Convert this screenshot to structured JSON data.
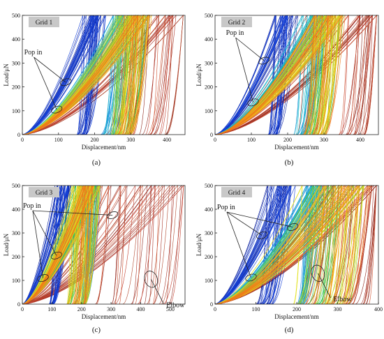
{
  "chart_data": [
    {
      "type": "line",
      "panel_label": "(a)",
      "grid_label": "Grid 1",
      "xlabel": "Displacement/nm",
      "ylabel": "Load/μN",
      "xlim": [
        0,
        450
      ],
      "ylim": [
        0,
        500
      ],
      "xticks": [
        0,
        100,
        200,
        300,
        400
      ],
      "yticks": [
        0,
        100,
        200,
        300,
        400,
        500
      ],
      "annotations": [
        {
          "label": "Pop in",
          "targets": [
            [
              95,
              105
            ],
            [
              120,
              220
            ]
          ]
        }
      ]
    },
    {
      "type": "line",
      "panel_label": "(b)",
      "grid_label": "Grid 2",
      "xlabel": "Displacement/nm",
      "ylabel": "Load/μN",
      "xlim": [
        0,
        450
      ],
      "ylim": [
        0,
        500
      ],
      "xticks": [
        0,
        100,
        200,
        300,
        400
      ],
      "yticks": [
        0,
        100,
        200,
        300,
        400,
        500
      ],
      "annotations": [
        {
          "label": "Pop in",
          "targets": [
            [
              105,
              135
            ],
            [
              135,
              310
            ]
          ]
        }
      ]
    },
    {
      "type": "line",
      "panel_label": "(c)",
      "grid_label": "Grid 3",
      "xlabel": "Displacement/nm",
      "ylabel": "Load/μN",
      "xlim": [
        0,
        550
      ],
      "ylim": [
        0,
        500
      ],
      "xticks": [
        0,
        100,
        200,
        300,
        400,
        500
      ],
      "yticks": [
        0,
        100,
        200,
        300,
        400,
        500
      ],
      "annotations": [
        {
          "label": "Pop in",
          "targets": [
            [
              70,
              110
            ],
            [
              115,
              205
            ],
            [
              305,
              375
            ]
          ]
        },
        {
          "label": "Elbow",
          "targets": [
            [
              435,
              105
            ]
          ]
        }
      ]
    },
    {
      "type": "line",
      "panel_label": "(d)",
      "grid_label": "Grid 4",
      "xlabel": "Displacement/nm",
      "ylabel": "Load/μN",
      "xlim": [
        0,
        400
      ],
      "ylim": [
        0,
        500
      ],
      "xticks": [
        0,
        100,
        200,
        300,
        400
      ],
      "yticks": [
        0,
        100,
        200,
        300,
        400,
        500
      ],
      "annotations": [
        {
          "label": "Pop in",
          "targets": [
            [
              88,
              112
            ],
            [
              115,
              290
            ],
            [
              190,
              325
            ]
          ]
        },
        {
          "label": "Elbow",
          "targets": [
            [
              252,
              130
            ]
          ]
        }
      ]
    }
  ]
}
